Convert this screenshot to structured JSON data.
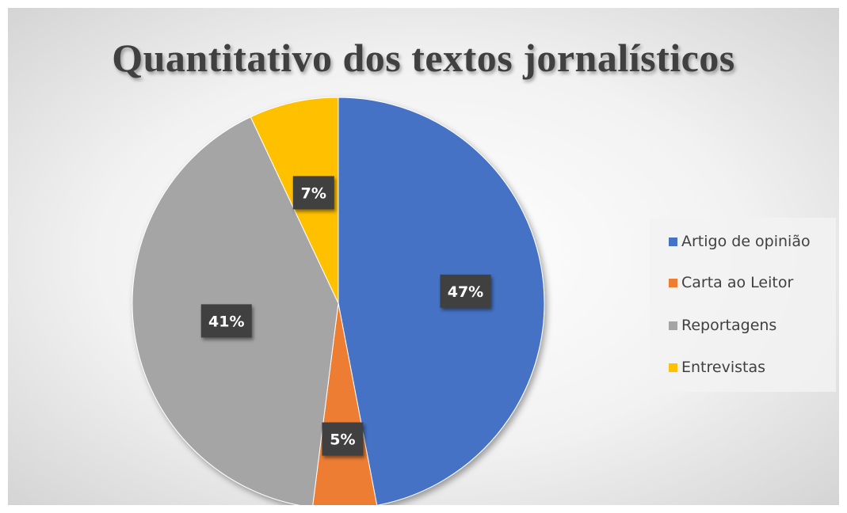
{
  "chart_data": {
    "type": "pie",
    "title": "Quantitativo dos textos jornalísticos",
    "categories": [
      "Artigo de opinião",
      "Carta ao Leitor",
      "Reportagens",
      "Entrevistas"
    ],
    "values": [
      47,
      5,
      41,
      7
    ],
    "labels": [
      "47%",
      "5%",
      "41%",
      "7%"
    ],
    "colors": [
      "#4472C4",
      "#ED7D31",
      "#A5A5A5",
      "#FFC000"
    ],
    "legend_position": "right",
    "start_angle_deg": 0,
    "direction": "clockwise"
  }
}
